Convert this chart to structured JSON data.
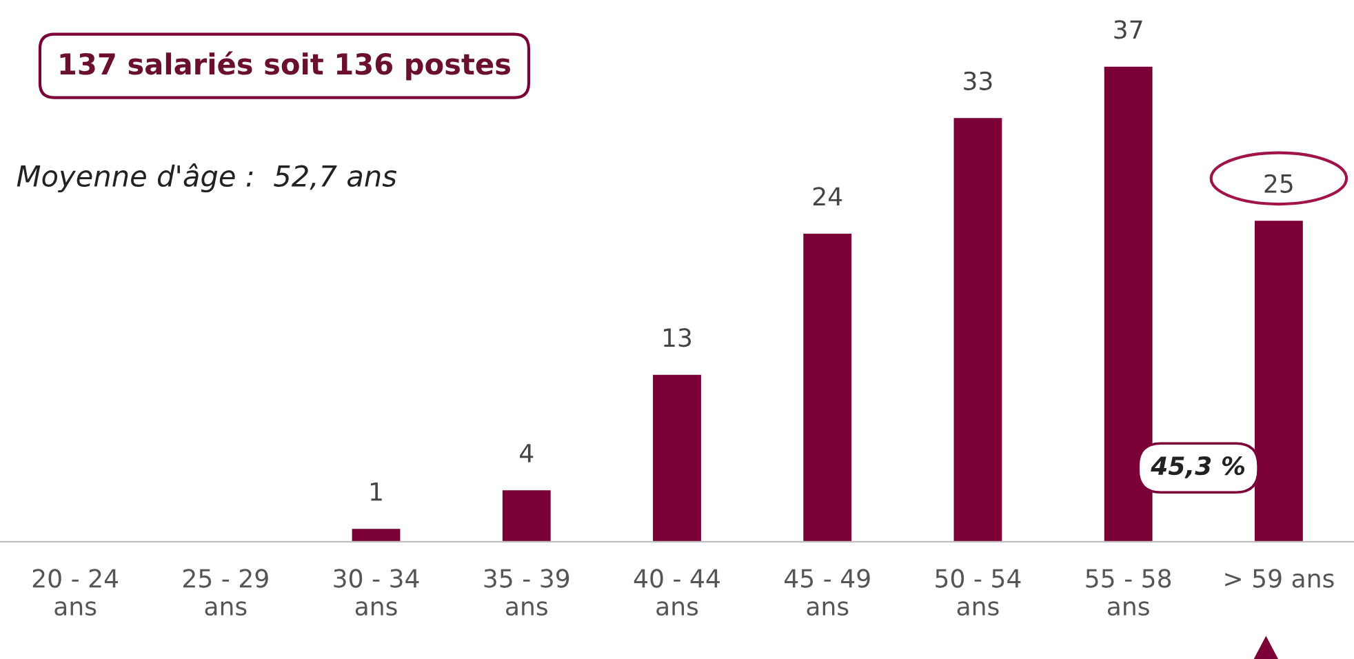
{
  "chart_data": {
    "type": "bar",
    "title": "137 salariés soit 136 postes",
    "categories": [
      "20 - 24\nans",
      "25 - 29\nans",
      "30 - 34\nans",
      "35 - 39\nans",
      "40 - 44\nans",
      "45 - 49\nans",
      "50 - 54\nans",
      "55 - 58\nans",
      "> 59 ans"
    ],
    "values": [
      0,
      0,
      1,
      4,
      13,
      24,
      33,
      37,
      25
    ],
    "value_labels": [
      null,
      null,
      "1",
      "4",
      "13",
      "24",
      "33",
      "37",
      "25"
    ],
    "color": "#7b0038",
    "annotations": [
      "Moyenne d'âge :  52,7 ans",
      "45,3 %"
    ],
    "grid": false,
    "legend": false
  }
}
